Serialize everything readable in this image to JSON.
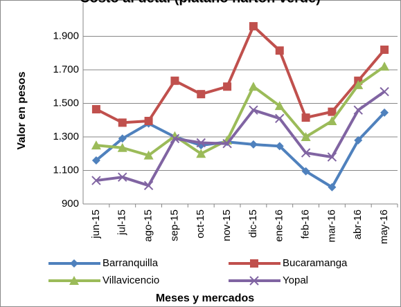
{
  "chart_data": {
    "type": "line",
    "title": "Costo al detal (plátano hartón verde)",
    "y_label": "Valor en pesos",
    "x_label": "Meses y mercados",
    "categories": [
      "jun-15",
      "jul-15",
      "ago-15",
      "sep-15",
      "oct-15",
      "nov-15",
      "dic-15",
      "ene-16",
      "feb-16",
      "mar-16",
      "abr-16",
      "may-16"
    ],
    "series": [
      {
        "name": "Barranquilla",
        "color": "#4f81bd",
        "marker": "diamond",
        "values": [
          1160,
          1290,
          1380,
          1300,
          1250,
          1270,
          1255,
          1245,
          1095,
          1000,
          1280,
          1445
        ]
      },
      {
        "name": "Bucaramanga",
        "color": "#c0504d",
        "marker": "square",
        "values": [
          1465,
          1385,
          1395,
          1635,
          1555,
          1600,
          1960,
          1815,
          1415,
          1450,
          1635,
          1820
        ]
      },
      {
        "name": "Villavicencio",
        "color": "#9bbb59",
        "marker": "triangle",
        "values": [
          1250,
          1235,
          1190,
          1305,
          1200,
          1280,
          1600,
          1485,
          1300,
          1395,
          1610,
          1720
        ]
      },
      {
        "name": "Yopal",
        "color": "#8064a2",
        "marker": "x",
        "values": [
          1040,
          1060,
          1010,
          1290,
          1265,
          1260,
          1460,
          1410,
          1205,
          1180,
          1460,
          1570
        ]
      }
    ],
    "ylim": [
      900,
      2100
    ],
    "yticks": [
      900,
      {
        "value": 1100,
        "label": "1.100"
      },
      {
        "value": 1300,
        "label": "1.300"
      },
      {
        "value": 1500,
        "label": "1.500"
      },
      {
        "value": 1700,
        "label": "1.700"
      },
      {
        "value": 1900,
        "label": "1.900"
      }
    ],
    "grid": true,
    "legend": "bottom"
  }
}
